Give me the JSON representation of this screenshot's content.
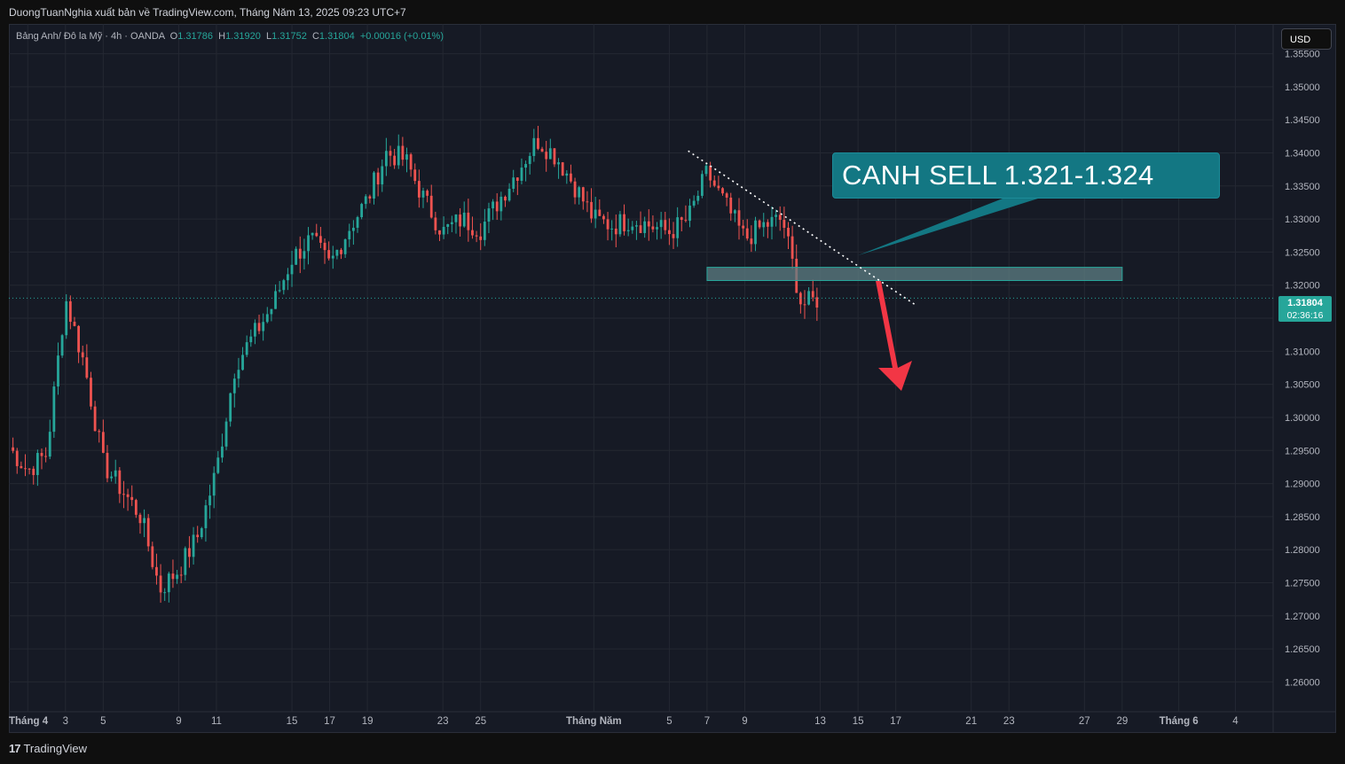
{
  "header": {
    "publisher_line": "DuongTuanNghia xuất bản về TradingView.com, Tháng Năm 13, 2025 09:23 UTC+7"
  },
  "legend": {
    "symbol": "Bảng Anh/ Đô la Mỹ · 4h · OANDA",
    "o_label": "O",
    "o": "1.31786",
    "h_label": "H",
    "h": "1.31920",
    "l_label": "L",
    "l": "1.31752",
    "c_label": "C",
    "c": "1.31804",
    "change": "+0.00016 (+0.01%)"
  },
  "currency_button": "USD",
  "annotation": {
    "text": "CANH SELL 1.321-1.324"
  },
  "last_price": {
    "price": "1.31804",
    "countdown": "02:36:16"
  },
  "footer": {
    "logo_mark": "17",
    "logo_text": "TradingView"
  },
  "colors": {
    "background": "#161a25",
    "up": "#26a69a",
    "down": "#ef5350",
    "annotation": "#137783",
    "zone": "#5d7f84",
    "arrow": "#f23645"
  },
  "chart_data": {
    "type": "candlestick",
    "y_axis": {
      "range": [
        1.2555,
        1.3595
      ],
      "ticks": [
        "1.35500",
        "1.35000",
        "1.34500",
        "1.34000",
        "1.33500",
        "1.33000",
        "1.32500",
        "1.32000",
        "1.31500",
        "1.31000",
        "1.30500",
        "1.30000",
        "1.29500",
        "1.29000",
        "1.28500",
        "1.28000",
        "1.27500",
        "1.27000",
        "1.26500",
        "1.26000"
      ]
    },
    "x_axis": {
      "range": [
        "2025-03-31",
        "2025-06-06"
      ],
      "ticks": [
        {
          "label": "Tháng 4",
          "date": "2025-04-01"
        },
        {
          "label": "3",
          "date": "2025-04-03"
        },
        {
          "label": "5",
          "date": "2025-04-05"
        },
        {
          "label": "9",
          "date": "2025-04-09"
        },
        {
          "label": "11",
          "date": "2025-04-11"
        },
        {
          "label": "15",
          "date": "2025-04-15"
        },
        {
          "label": "17",
          "date": "2025-04-17"
        },
        {
          "label": "19",
          "date": "2025-04-19"
        },
        {
          "label": "23",
          "date": "2025-04-23"
        },
        {
          "label": "25",
          "date": "2025-04-25"
        },
        {
          "label": "Tháng Năm",
          "date": "2025-05-01"
        },
        {
          "label": "5",
          "date": "2025-05-05"
        },
        {
          "label": "7",
          "date": "2025-05-07"
        },
        {
          "label": "9",
          "date": "2025-05-09"
        },
        {
          "label": "13",
          "date": "2025-05-13"
        },
        {
          "label": "15",
          "date": "2025-05-15"
        },
        {
          "label": "17",
          "date": "2025-05-17"
        },
        {
          "label": "21",
          "date": "2025-05-21"
        },
        {
          "label": "23",
          "date": "2025-05-23"
        },
        {
          "label": "27",
          "date": "2025-05-27"
        },
        {
          "label": "29",
          "date": "2025-05-29"
        },
        {
          "label": "Tháng 6",
          "date": "2025-06-01"
        },
        {
          "label": "4",
          "date": "2025-06-04"
        }
      ]
    },
    "price_path": [
      [
        "2025-03-31",
        1.2955
      ],
      [
        "2025-04-01",
        1.292
      ],
      [
        "2025-04-02",
        1.2945
      ],
      [
        "2025-04-03",
        1.318
      ],
      [
        "2025-04-04",
        1.308
      ],
      [
        "2025-04-05",
        1.293
      ],
      [
        "2025-04-07",
        1.285
      ],
      [
        "2025-04-08",
        1.274
      ],
      [
        "2025-04-09",
        1.277
      ],
      [
        "2025-04-10",
        1.282
      ],
      [
        "2025-04-11",
        1.292
      ],
      [
        "2025-04-12",
        1.308
      ],
      [
        "2025-04-14",
        1.317
      ],
      [
        "2025-04-15",
        1.324
      ],
      [
        "2025-04-16",
        1.327
      ],
      [
        "2025-04-17",
        1.323
      ],
      [
        "2025-04-18",
        1.3285
      ],
      [
        "2025-04-19",
        1.333
      ],
      [
        "2025-04-20",
        1.34
      ],
      [
        "2025-04-21",
        1.339
      ],
      [
        "2025-04-22",
        1.333
      ],
      [
        "2025-04-23",
        1.328
      ],
      [
        "2025-04-24",
        1.33
      ],
      [
        "2025-04-25",
        1.3285
      ],
      [
        "2025-04-26",
        1.333
      ],
      [
        "2025-04-28",
        1.342
      ],
      [
        "2025-04-29",
        1.3395
      ],
      [
        "2025-04-30",
        1.335
      ],
      [
        "2025-05-01",
        1.33
      ],
      [
        "2025-05-02",
        1.329
      ],
      [
        "2025-05-03",
        1.33
      ],
      [
        "2025-05-05",
        1.328
      ],
      [
        "2025-05-06",
        1.33
      ],
      [
        "2025-05-07",
        1.337
      ],
      [
        "2025-05-08",
        1.332
      ],
      [
        "2025-05-09",
        1.327
      ],
      [
        "2025-05-10",
        1.329
      ],
      [
        "2025-05-11",
        1.33
      ],
      [
        "2025-05-12",
        1.317
      ],
      [
        "2025-05-13",
        1.318
      ]
    ],
    "last_close": 1.31804,
    "sell_zone": {
      "from": 1.3207,
      "to": 1.3227,
      "x_from": "2025-05-07",
      "x_to": "2025-05-29"
    },
    "trendline": {
      "from": [
        "2025-05-06",
        1.3403
      ],
      "to": [
        "2025-05-18",
        1.3171
      ]
    }
  }
}
